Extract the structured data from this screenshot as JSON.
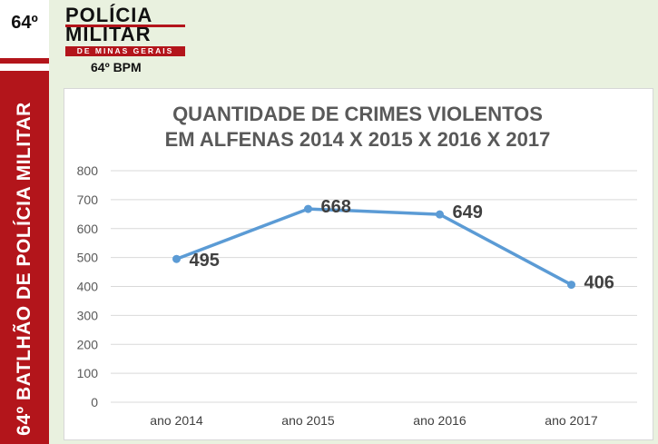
{
  "badge": "64º",
  "sidebar_text": "64º BATLHÃO DE POLÍCIA MILITAR",
  "logo": {
    "line1": "POLÍCIA",
    "line2": "MILITAR",
    "sub": "DE MINAS GERAIS"
  },
  "unit_label": "64º BPM",
  "colors": {
    "brand_red": "#b3151b",
    "line": "#5b9bd5",
    "background": "#e9f1df"
  },
  "chart_data": {
    "type": "line",
    "title_line1": "QUANTIDADE DE CRIMES VIOLENTOS",
    "title_line2": "EM ALFENAS 2014 X 2015 X 2016 X 2017",
    "categories": [
      "ano 2014",
      "ano 2015",
      "ano 2016",
      "ano 2017"
    ],
    "series": [
      {
        "values": [
          495,
          668,
          649,
          406
        ]
      }
    ],
    "data_labels": [
      "495",
      "668",
      "649",
      "406"
    ],
    "yticks": [
      "0",
      "100",
      "200",
      "300",
      "400",
      "500",
      "600",
      "700",
      "800"
    ],
    "ylim": [
      0,
      800
    ],
    "grid": true,
    "xlabel": "",
    "ylabel": ""
  }
}
